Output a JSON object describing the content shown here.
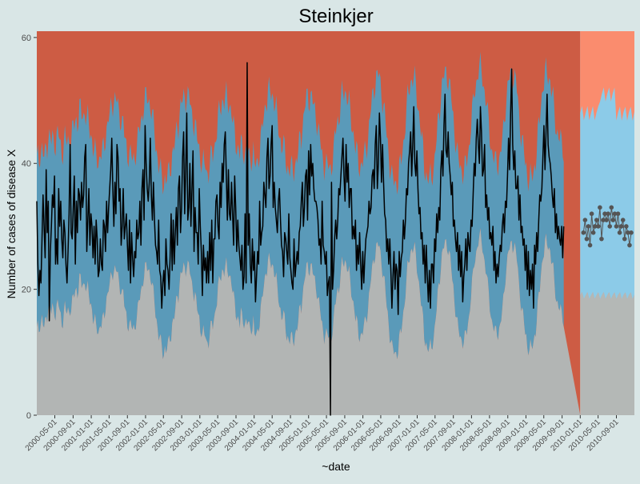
{
  "chart_data": {
    "type": "line",
    "title": "Steinkjer",
    "xlabel": "~date",
    "ylabel": "Number of cases of disease X",
    "xlim": [
      "2000-01-01",
      "2010-12-31"
    ],
    "ylim": [
      0,
      61
    ],
    "y_ticks": [
      0,
      20,
      40,
      60
    ],
    "x_tick_labels": [
      "2000-05-01",
      "2000-09-01",
      "2001-01-01",
      "2001-05-01",
      "2001-09-01",
      "2002-01-01",
      "2002-05-01",
      "2002-09-01",
      "2003-01-01",
      "2003-05-01",
      "2003-09-01",
      "2004-01-01",
      "2004-05-01",
      "2004-09-01",
      "2005-01-01",
      "2005-05-01",
      "2005-09-01",
      "2006-01-01",
      "2006-05-01",
      "2006-09-01",
      "2007-01-01",
      "2007-05-01",
      "2007-09-01",
      "2008-01-01",
      "2008-05-01",
      "2008-09-01",
      "2009-01-01",
      "2009-05-01",
      "2009-09-01",
      "2010-01-01",
      "2010-05-01",
      "2010-09-01"
    ],
    "forecast_start": "2010-01-01",
    "grid": false,
    "legend": "none",
    "series": [
      {
        "values_note": "weekly counts",
        "start": "2000-01-01",
        "values": [
          34,
          24,
          19,
          23,
          21,
          28,
          35,
          30,
          25,
          39,
          29,
          34,
          15,
          26,
          30,
          35,
          33,
          38,
          24,
          28,
          24,
          36,
          30,
          34,
          28,
          25,
          31,
          29,
          24,
          21,
          26,
          32,
          43,
          29,
          28,
          33,
          38,
          24,
          34,
          29,
          36,
          35,
          31,
          37,
          33,
          35,
          41,
          43,
          26,
          31,
          36,
          27,
          32,
          30,
          25,
          30,
          24,
          31,
          28,
          22,
          23,
          28,
          24,
          23,
          31,
          30,
          26,
          34,
          29,
          33,
          36,
          39,
          44,
          36,
          30,
          37,
          32,
          43,
          41,
          34,
          36,
          27,
          30,
          36,
          28,
          30,
          32,
          27,
          23,
          31,
          21,
          29,
          25,
          22,
          26,
          25,
          31,
          28,
          29,
          34,
          27,
          36,
          39,
          31,
          46,
          40,
          36,
          34,
          37,
          44,
          35,
          31,
          37,
          31,
          27,
          26,
          24,
          31,
          23,
          22,
          17,
          21,
          23,
          19,
          28,
          24,
          23,
          20,
          25,
          32,
          23,
          31,
          24,
          29,
          33,
          27,
          36,
          38,
          29,
          33,
          41,
          45,
          32,
          39,
          48,
          31,
          33,
          40,
          30,
          36,
          42,
          26,
          33,
          29,
          29,
          24,
          36,
          30,
          26,
          19,
          27,
          23,
          25,
          21,
          26,
          21,
          29,
          23,
          31,
          21,
          28,
          28,
          34,
          35,
          30,
          28,
          37,
          33,
          40,
          37,
          43,
          45,
          38,
          31,
          39,
          32,
          31,
          37,
          32,
          27,
          38,
          33,
          26,
          31,
          27,
          25,
          23,
          27,
          20,
          22,
          32,
          21,
          56,
          27,
          32,
          24,
          21,
          28,
          23,
          26,
          18,
          22,
          26,
          24,
          34,
          27,
          29,
          30,
          37,
          35,
          33,
          41,
          44,
          36,
          38,
          43,
          46,
          33,
          37,
          33,
          31,
          29,
          34,
          36,
          31,
          27,
          26,
          22,
          29,
          28,
          26,
          24,
          32,
          25,
          23,
          21,
          20,
          28,
          22,
          24,
          26,
          24,
          29,
          30,
          34,
          37,
          30,
          33,
          38,
          39,
          31,
          42,
          35,
          43,
          38,
          40,
          36,
          34,
          34,
          33,
          31,
          27,
          28,
          24,
          34,
          27,
          26,
          24,
          26,
          19,
          21,
          22,
          0,
          37,
          20,
          23,
          28,
          31,
          28,
          31,
          36,
          35,
          38,
          41,
          44,
          38,
          34,
          43,
          37,
          40,
          33,
          36,
          36,
          28,
          30,
          28,
          31,
          23,
          27,
          24,
          29,
          24,
          20,
          26,
          21,
          25,
          28,
          29,
          30,
          34,
          32,
          33,
          38,
          39,
          36,
          43,
          46,
          36,
          40,
          48,
          44,
          37,
          43,
          37,
          32,
          31,
          26,
          28,
          24,
          28,
          23,
          17,
          22,
          26,
          20,
          24,
          23,
          16,
          26,
          22,
          25,
          26,
          31,
          28,
          31,
          36,
          35,
          40,
          42,
          45,
          38,
          43,
          49,
          40,
          38,
          42,
          36,
          32,
          33,
          28,
          29,
          24,
          27,
          21,
          27,
          22,
          18,
          23,
          17,
          24,
          24,
          21,
          28,
          26,
          32,
          29,
          33,
          31,
          39,
          42,
          38,
          46,
          51,
          42,
          41,
          45,
          40,
          38,
          35,
          37,
          30,
          31,
          28,
          26,
          29,
          23,
          27,
          22,
          26,
          18,
          22,
          24,
          28,
          23,
          29,
          27,
          26,
          31,
          30,
          35,
          40,
          38,
          44,
          47,
          43,
          40,
          49,
          45,
          38,
          39,
          43,
          33,
          35,
          31,
          33,
          28,
          29,
          27,
          30,
          23,
          26,
          21,
          24,
          22,
          25,
          27,
          26,
          30,
          32,
          29,
          34,
          33,
          38,
          44,
          39,
          48,
          55,
          43,
          39,
          42,
          36,
          36,
          38,
          31,
          35,
          29,
          30,
          27,
          28,
          23,
          27,
          20,
          26,
          19,
          23,
          20,
          24,
          17,
          27,
          24,
          29,
          26,
          31,
          35,
          34,
          36,
          41,
          46,
          39,
          45,
          51,
          43,
          41,
          40,
          38,
          35,
          33,
          36,
          29,
          32,
          28,
          30,
          28,
          27,
          30,
          25,
          30
        ]
      },
      {
        "values_note": "forecast point estimates",
        "start": "2010-01-01",
        "values": [
          29,
          31,
          28,
          30,
          27,
          32,
          29,
          30,
          31,
          30,
          33,
          28,
          31,
          32,
          31,
          32,
          30,
          33,
          31,
          32,
          30,
          32,
          29,
          30,
          31,
          28,
          30,
          29,
          27,
          29
        ]
      }
    ],
    "colors": {
      "upper_band": "#cd5c44",
      "middle_band": "#5a9ab9",
      "lower_band": "#b2b5b4",
      "upper_band_forecast": "#fa8c6e",
      "middle_band_forecast": "#8ccbe8",
      "lower_band_forecast": "#b4b8b6",
      "observed_line": "#000000",
      "forecast_points": "#555555",
      "axis_text": "#4d4d4d"
    }
  }
}
